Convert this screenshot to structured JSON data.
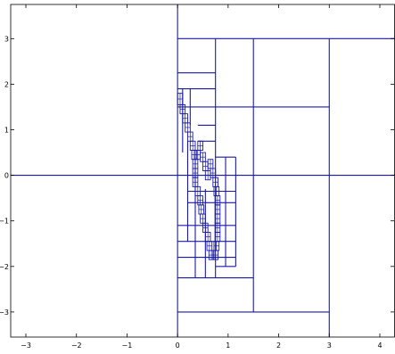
{
  "chart_data": {
    "type": "line",
    "title": "",
    "xlabel": "",
    "ylabel": "",
    "xlim": [
      -3.3,
      4.3
    ],
    "ylim": [
      -3.55,
      3.75
    ],
    "grid": false,
    "legend": "none",
    "line_color": "#1a1aaa",
    "axis_color": "#000000",
    "xticks": [
      -3,
      -2,
      -1,
      0,
      1,
      2,
      3,
      4
    ],
    "xtick_labels": [
      "−3",
      "−2",
      "−1",
      "0",
      "1",
      "2",
      "3",
      "4"
    ],
    "yticks": [
      -3,
      -2,
      -1,
      0,
      1,
      2,
      3
    ],
    "ytick_labels": [
      "−3",
      "−2",
      "−1",
      "0",
      "1",
      "2",
      "3"
    ],
    "segments": [
      {
        "name": "axis-vertical",
        "x": [
          0,
          0
        ],
        "y": [
          -3.55,
          3.75
        ]
      },
      {
        "name": "axis-horizontal",
        "x": [
          -3.3,
          4.3
        ],
        "y": [
          0,
          0
        ]
      },
      {
        "name": "top-band",
        "x": [
          0,
          4.3
        ],
        "y": [
          3,
          3
        ]
      },
      {
        "name": "bottom-band",
        "x": [
          0,
          3
        ],
        "y": [
          -3,
          -3
        ]
      },
      {
        "name": "right-divider",
        "x": [
          3,
          3
        ],
        "y": [
          -3.55,
          3
        ]
      },
      {
        "name": "band-1.5",
        "x": [
          0,
          3
        ],
        "y": [
          1.5,
          1.5
        ]
      },
      {
        "name": "band-minus-2.25",
        "x": [
          0,
          1.5
        ],
        "y": [
          -2.25,
          -2.25
        ]
      },
      {
        "name": "col-1.5",
        "x": [
          1.5,
          1.5
        ],
        "y": [
          -3,
          3
        ]
      },
      {
        "name": "col-0.75",
        "x": [
          0.75,
          0.75
        ],
        "y": [
          -2.25,
          3
        ]
      },
      {
        "name": "row-2.25",
        "x": [
          0,
          0.75
        ],
        "y": [
          2.25,
          2.25
        ]
      },
      {
        "name": "row-1.9",
        "x": [
          0,
          0.75
        ],
        "y": [
          1.9,
          1.9
        ]
      },
      {
        "name": "row-1.1",
        "x": [
          0.4,
          0.75
        ],
        "y": [
          1.1,
          1.1
        ]
      },
      {
        "name": "row-0.75",
        "x": [
          0.4,
          0.75
        ],
        "y": [
          0.75,
          0.75
        ]
      },
      {
        "name": "col-1.15",
        "x": [
          1.15,
          1.15
        ],
        "y": [
          -2.0,
          0.4
        ]
      },
      {
        "name": "col-0.95",
        "x": [
          0.95,
          0.95
        ],
        "y": [
          -2.0,
          0.4
        ]
      },
      {
        "name": "row-0.4",
        "x": [
          0.75,
          1.15
        ],
        "y": [
          0.4,
          0.4
        ]
      },
      {
        "name": "row-minus-0.35",
        "x": [
          0.2,
          1.15
        ],
        "y": [
          -0.35,
          -0.35
        ]
      },
      {
        "name": "row-minus-0.6",
        "x": [
          0.2,
          1.15
        ],
        "y": [
          -0.6,
          -0.6
        ]
      },
      {
        "name": "row-minus-1.1",
        "x": [
          0,
          1.15
        ],
        "y": [
          -1.1,
          -1.1
        ]
      },
      {
        "name": "row-minus-1.45",
        "x": [
          0,
          1.15
        ],
        "y": [
          -1.45,
          -1.45
        ]
      },
      {
        "name": "row-minus-1.8",
        "x": [
          0,
          1.15
        ],
        "y": [
          -1.8,
          -1.8
        ]
      },
      {
        "name": "row-minus-2.0",
        "x": [
          0.75,
          1.15
        ],
        "y": [
          -2.0,
          -2.0
        ]
      },
      {
        "name": "col-0.35",
        "x": [
          0.35,
          0.35
        ],
        "y": [
          -2.25,
          0.4
        ]
      },
      {
        "name": "col-0.55",
        "x": [
          0.55,
          0.55
        ],
        "y": [
          -2.25,
          -0.3
        ]
      },
      {
        "name": "col-0.2",
        "x": [
          0.2,
          0.2
        ],
        "y": [
          -1.45,
          0.75
        ]
      },
      {
        "name": "col-0.1",
        "x": [
          0.1,
          0.1
        ],
        "y": [
          0.5,
          1.9
        ]
      },
      {
        "name": "col-0.25",
        "x": [
          0.25,
          0.25
        ],
        "y": [
          1.1,
          1.9
        ]
      }
    ],
    "fine_cells": [
      {
        "x": 0.0,
        "y": 1.55,
        "w": 0.1,
        "h": 0.25
      },
      {
        "x": 0.05,
        "y": 1.35,
        "w": 0.1,
        "h": 0.2
      },
      {
        "x": 0.1,
        "y": 1.15,
        "w": 0.1,
        "h": 0.2
      },
      {
        "x": 0.15,
        "y": 0.95,
        "w": 0.1,
        "h": 0.2
      },
      {
        "x": 0.2,
        "y": 0.75,
        "w": 0.1,
        "h": 0.2
      },
      {
        "x": 0.25,
        "y": 0.55,
        "w": 0.1,
        "h": 0.2
      },
      {
        "x": 0.28,
        "y": 0.35,
        "w": 0.1,
        "h": 0.2
      },
      {
        "x": 0.3,
        "y": 0.15,
        "w": 0.1,
        "h": 0.2
      },
      {
        "x": 0.35,
        "y": 0.35,
        "w": 0.1,
        "h": 0.2
      },
      {
        "x": 0.4,
        "y": 0.55,
        "w": 0.1,
        "h": 0.2
      },
      {
        "x": 0.45,
        "y": 0.3,
        "w": 0.1,
        "h": 0.2
      },
      {
        "x": 0.5,
        "y": 0.1,
        "w": 0.1,
        "h": 0.2
      },
      {
        "x": 0.55,
        "y": -0.1,
        "w": 0.1,
        "h": 0.2
      },
      {
        "x": 0.6,
        "y": 0.15,
        "w": 0.1,
        "h": 0.2
      },
      {
        "x": 0.65,
        "y": -0.05,
        "w": 0.1,
        "h": 0.2
      },
      {
        "x": 0.3,
        "y": -0.05,
        "w": 0.1,
        "h": 0.2
      },
      {
        "x": 0.3,
        "y": -0.25,
        "w": 0.1,
        "h": 0.2
      },
      {
        "x": 0.35,
        "y": -0.45,
        "w": 0.1,
        "h": 0.2
      },
      {
        "x": 0.4,
        "y": -0.65,
        "w": 0.1,
        "h": 0.2
      },
      {
        "x": 0.42,
        "y": -0.85,
        "w": 0.1,
        "h": 0.2
      },
      {
        "x": 0.45,
        "y": -1.05,
        "w": 0.1,
        "h": 0.2
      },
      {
        "x": 0.5,
        "y": -1.25,
        "w": 0.1,
        "h": 0.2
      },
      {
        "x": 0.55,
        "y": -1.45,
        "w": 0.1,
        "h": 0.2
      },
      {
        "x": 0.58,
        "y": -1.65,
        "w": 0.1,
        "h": 0.2
      },
      {
        "x": 0.62,
        "y": -1.85,
        "w": 0.1,
        "h": 0.2
      },
      {
        "x": 0.7,
        "y": -0.25,
        "w": 0.1,
        "h": 0.2
      },
      {
        "x": 0.72,
        "y": -0.45,
        "w": 0.1,
        "h": 0.2
      },
      {
        "x": 0.74,
        "y": -0.65,
        "w": 0.1,
        "h": 0.2
      },
      {
        "x": 0.74,
        "y": -0.85,
        "w": 0.1,
        "h": 0.2
      },
      {
        "x": 0.74,
        "y": -1.05,
        "w": 0.1,
        "h": 0.2
      },
      {
        "x": 0.74,
        "y": -1.25,
        "w": 0.1,
        "h": 0.2
      },
      {
        "x": 0.74,
        "y": -1.45,
        "w": 0.1,
        "h": 0.2
      },
      {
        "x": 0.72,
        "y": -1.65,
        "w": 0.1,
        "h": 0.2
      },
      {
        "x": 0.7,
        "y": -1.85,
        "w": 0.1,
        "h": 0.2
      }
    ]
  }
}
